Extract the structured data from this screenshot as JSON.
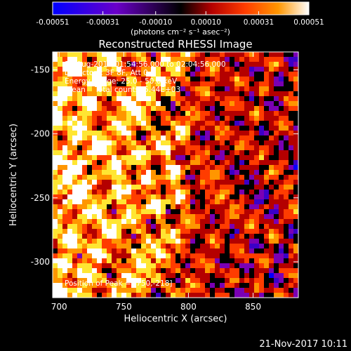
{
  "chart_data": {
    "type": "heatmap",
    "title": "Reconstructed RHESSI Image",
    "xlabel": "Heliocentric X (arcsec)",
    "ylabel": "Heliocentric Y (arcsec)",
    "xlim": [
      695,
      885
    ],
    "ylim": [
      -328,
      -136
    ],
    "x_ticks": [
      700,
      750,
      800,
      850
    ],
    "y_ticks": [
      -150,
      -200,
      -250,
      -300
    ],
    "colorbar": {
      "range": [
        -0.00051,
        0.00051
      ],
      "tick_values": [
        -0.00051,
        -0.00031,
        -0.0001,
        0.0001,
        0.00031,
        0.00051
      ],
      "tick_labels": [
        "-0.00051",
        "-0.00031",
        "-0.00010",
        "0.00010",
        "0.00031",
        "0.00051"
      ],
      "unit_label": "(photons cm⁻² s⁻¹ asec⁻²)",
      "colors": [
        "#0000ff",
        "#3b00c8",
        "#7a00b4",
        "#000000",
        "#b40000",
        "#ff3c00",
        "#ff9600",
        "#ffe632",
        "#ffffff"
      ]
    },
    "annotations": [
      "19-Aug-2016 01:54:56.000 to 02:04:56.000",
      "Detectors: 3F 8F, Att 0",
      "Energy Range: 25.0 - 50.0 keV",
      "Clean    Total counts: 5.44E+03"
    ],
    "peak": {
      "label": "Position of Peak = [750,-218]",
      "x": 750,
      "y": -218
    },
    "footer_date": "21-Nov-2017 10:11"
  }
}
